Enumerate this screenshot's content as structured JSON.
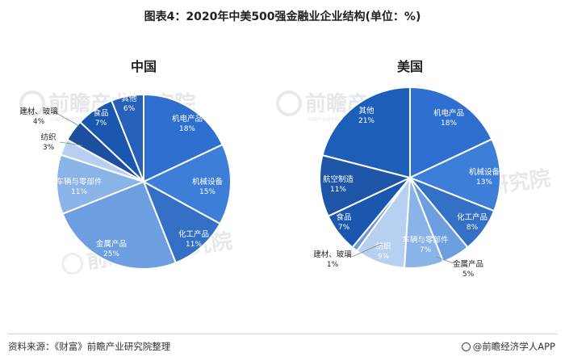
{
  "header": {
    "title": "图表4：2020年中美500强金融业企业结构(单位：%)"
  },
  "footer": {
    "source": "资料来源：《财富》前瞻产业研究院整理",
    "brand": "@前瞻经济学人APP"
  },
  "watermark": {
    "text": "前瞻产业研究院",
    "sub": "中国产业研究服务机构 产业规划 产业升级"
  },
  "chart_data": [
    {
      "type": "pie",
      "title": "中国",
      "unit": "%",
      "slices": [
        {
          "name": "机电产品",
          "value": 18,
          "label": "18%",
          "color": "#2e6fcf"
        },
        {
          "name": "机械设备",
          "value": 15,
          "label": "15%",
          "color": "#3d7fd8"
        },
        {
          "name": "化工产品",
          "value": 11,
          "label": "11%",
          "color": "#3470c6"
        },
        {
          "name": "金属产品",
          "value": 25,
          "label": "25%",
          "color": "#6d9fe0"
        },
        {
          "name": "车辆与零部件",
          "value": 11,
          "label": "11%",
          "color": "#8ab3e8"
        },
        {
          "name": "纺织",
          "value": 3,
          "label": "3%",
          "color": "#b7cff0"
        },
        {
          "name": "建材、玻璃",
          "value": 4,
          "label": "4%",
          "color": "#1e4f9e"
        },
        {
          "name": "食品",
          "value": 7,
          "label": "7%",
          "color": "#1a58b0"
        },
        {
          "name": "其他",
          "value": 6,
          "label": "6%",
          "color": "#2660b8"
        }
      ]
    },
    {
      "type": "pie",
      "title": "美国",
      "unit": "%",
      "slices": [
        {
          "name": "机电产品",
          "value": 18,
          "label": "18%",
          "color": "#2e6fcf"
        },
        {
          "name": "机械设备",
          "value": 13,
          "label": "13%",
          "color": "#3d7fd8"
        },
        {
          "name": "化工产品",
          "value": 8,
          "label": "8%",
          "color": "#3470c6"
        },
        {
          "name": "金属产品",
          "value": 5,
          "label": "5%",
          "color": "#6d9fe0"
        },
        {
          "name": "车辆与零部件",
          "value": 7,
          "label": "7%",
          "color": "#8ab3e8"
        },
        {
          "name": "纺织",
          "value": 9,
          "label": "9%",
          "color": "#b7cff0"
        },
        {
          "name": "建材、玻璃",
          "value": 1,
          "label": "1%",
          "color": "#6f9bd9"
        },
        {
          "name": "食品",
          "value": 7,
          "label": "7%",
          "color": "#1a58b0"
        },
        {
          "name": "航空制造",
          "value": 11,
          "label": "11%",
          "color": "#1f55a6"
        },
        {
          "name": "其他",
          "value": 21,
          "label": "21%",
          "color": "#1d5fb8"
        }
      ]
    }
  ]
}
